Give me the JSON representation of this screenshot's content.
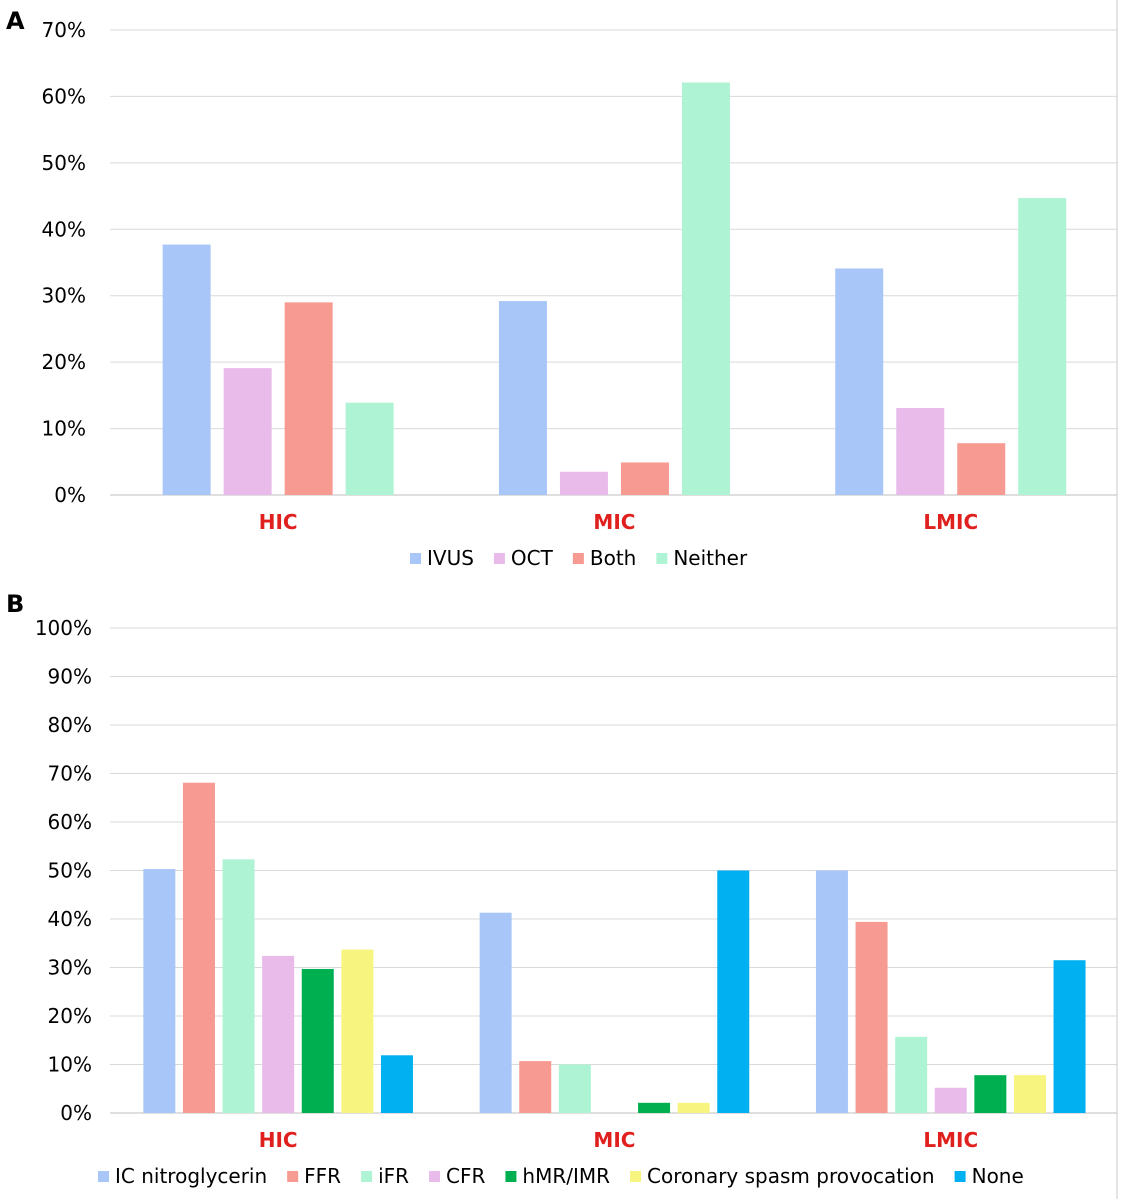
{
  "chart_data": [
    {
      "panel": "A",
      "type": "bar",
      "categories": [
        "HIC",
        "MIC",
        "LMIC"
      ],
      "yticks": [
        "0%",
        "10%",
        "20%",
        "30%",
        "40%",
        "50%",
        "60%",
        "70%"
      ],
      "ylim": [
        0,
        70
      ],
      "grid": true,
      "legend_position": "bottom",
      "category_label_color": "#e0201e",
      "series": [
        {
          "name": "IVUS",
          "color": "#a9c6f8",
          "values": [
            37.7,
            29.2,
            34.1
          ]
        },
        {
          "name": "OCT",
          "color": "#e8bbeb",
          "values": [
            19.1,
            3.5,
            13.1
          ]
        },
        {
          "name": "Both",
          "color": "#f79a92",
          "values": [
            29.0,
            4.9,
            7.8
          ]
        },
        {
          "name": "Neither",
          "color": "#aef4d4",
          "values": [
            13.9,
            62.1,
            44.7
          ]
        }
      ]
    },
    {
      "panel": "B",
      "type": "bar",
      "categories": [
        "HIC",
        "MIC",
        "LMIC"
      ],
      "yticks": [
        "0%",
        "10%",
        "20%",
        "30%",
        "40%",
        "50%",
        "60%",
        "70%",
        "80%",
        "90%",
        "100%"
      ],
      "ylim": [
        0,
        100
      ],
      "grid": true,
      "legend_position": "bottom",
      "category_label_color": "#e0201e",
      "series": [
        {
          "name": "IC nitroglycerin",
          "color": "#a9c6f8",
          "values": [
            50.3,
            41.3,
            50.0
          ]
        },
        {
          "name": "FFR",
          "color": "#f79a92",
          "values": [
            68.1,
            10.7,
            39.4
          ]
        },
        {
          "name": "iFR",
          "color": "#aef4d4",
          "values": [
            52.3,
            10.0,
            15.7
          ]
        },
        {
          "name": "CFR",
          "color": "#e8bbeb",
          "values": [
            32.4,
            0.0,
            5.2
          ]
        },
        {
          "name": "hMR/IMR",
          "color": "#00b050",
          "values": [
            29.7,
            2.1,
            7.8
          ]
        },
        {
          "name": "Coronary spasm provocation",
          "color": "#f7f47f",
          "values": [
            33.7,
            2.1,
            7.8
          ]
        },
        {
          "name": "None",
          "color": "#00b0f0",
          "values": [
            11.9,
            50.0,
            31.5
          ]
        }
      ]
    }
  ]
}
